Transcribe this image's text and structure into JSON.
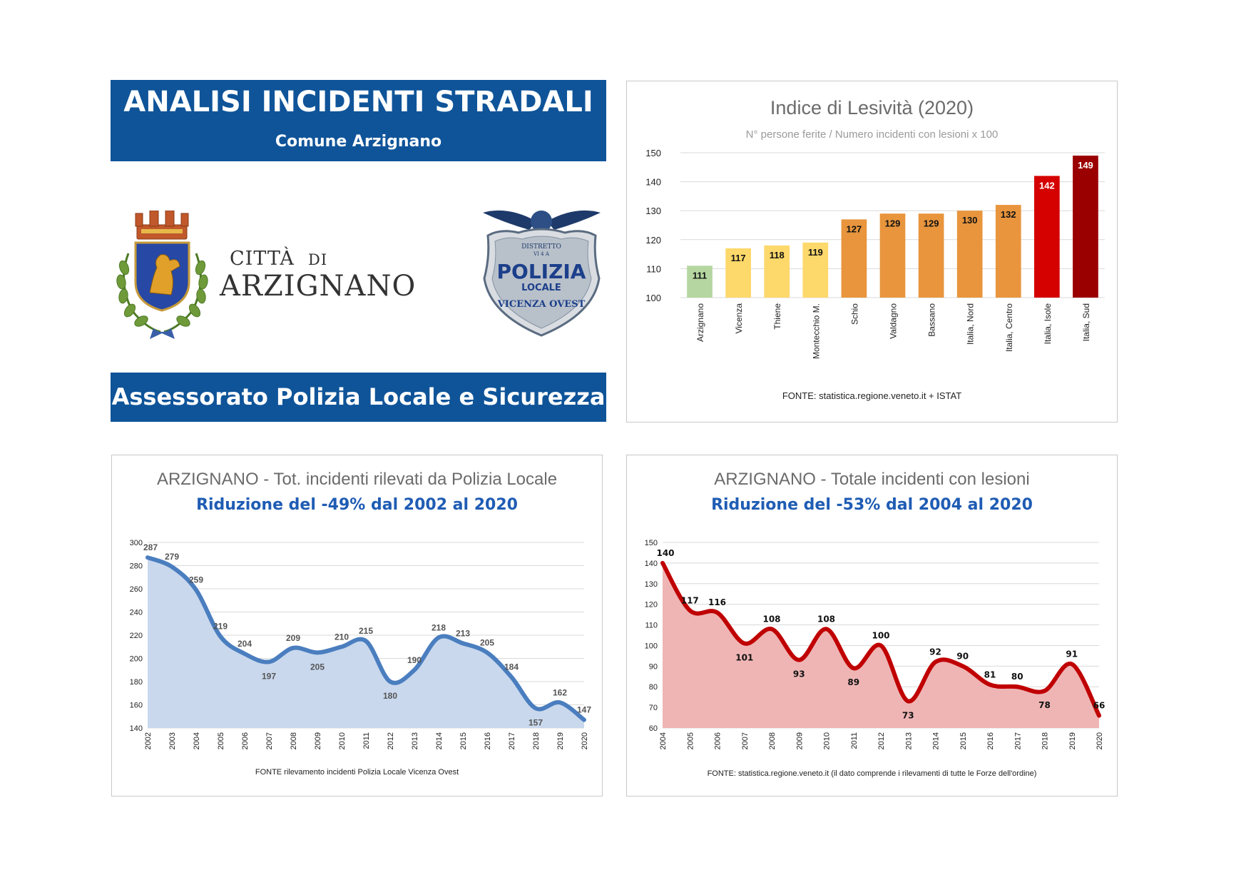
{
  "header": {
    "title": "ANALISI INCIDENTI STRADALI",
    "subtitle": "Comune Arzignano"
  },
  "city_logo": {
    "line1_main": "CITTÀ",
    "line1_small": "DI",
    "line2": "ARZIGNANO"
  },
  "police_badge": {
    "top_text": "DISTRETTO",
    "code": "VI 4 A",
    "main": "POLIZIA",
    "sub": "LOCALE",
    "bottom": "VICENZA OVEST"
  },
  "footer_banner": "Assessorato Polizia Locale e Sicurezza",
  "colors": {
    "brand_blue": "#0f5499",
    "subtitle_blue": "#1f5cb4",
    "line_blue": "#4a7ebf",
    "area_blue": "#c9d8ed",
    "line_red": "#c00000",
    "area_red": "#efb5b5"
  },
  "chart_data": [
    {
      "id": "lesivita",
      "type": "bar",
      "title": "Indice di Lesività (2020)",
      "subtitle": "N° persone ferite / Numero incidenti con lesioni x 100",
      "source": "FONTE: statistica.regione.veneto.it  +  ISTAT",
      "categories": [
        "Arzignano",
        "Vicenza",
        "Thiene",
        "Montecchio M.",
        "Schio",
        "Valdagno",
        "Bassano",
        "Italia, Nord",
        "Italia, Centro",
        "Italia, Isole",
        "Italia, Sud"
      ],
      "values": [
        111,
        117,
        118,
        119,
        127,
        129,
        129,
        130,
        132,
        142,
        149
      ],
      "bar_colors": [
        "#b5d6a0",
        "#fdd86a",
        "#fdd86a",
        "#fdd86a",
        "#e8953d",
        "#e8953d",
        "#e8953d",
        "#e8953d",
        "#e8953d",
        "#d50000",
        "#9b0000"
      ],
      "ylim": [
        100,
        150
      ],
      "yticks": [
        100,
        110,
        120,
        130,
        140,
        150
      ],
      "grid": true
    },
    {
      "id": "polizia_locale",
      "type": "area",
      "title": "ARZIGNANO - Tot. incidenti rilevati da Polizia Locale",
      "subtitle": "Riduzione del -49% dal 2002 al 2020",
      "source": "FONTE rilevamento incidenti Polizia Locale Vicenza Ovest",
      "x": [
        "2002",
        "2003",
        "2004",
        "2005",
        "2006",
        "2007",
        "2008",
        "2009",
        "2010",
        "2011",
        "2012",
        "2013",
        "2014",
        "2015",
        "2016",
        "2017",
        "2018",
        "2019",
        "2020"
      ],
      "values": [
        287,
        279,
        259,
        219,
        204,
        197,
        209,
        205,
        210,
        215,
        180,
        190,
        218,
        213,
        205,
        184,
        157,
        162,
        147
      ],
      "ylim": [
        140,
        300
      ],
      "yticks": [
        140,
        160,
        180,
        200,
        220,
        240,
        260,
        280,
        300
      ],
      "grid": true
    },
    {
      "id": "lesioni",
      "type": "area",
      "title": "ARZIGNANO - Totale incidenti con lesioni",
      "subtitle": "Riduzione del -53% dal 2004 al 2020",
      "source": "FONTE: statistica.regione.veneto.it  (il dato comprende i rilevamenti di tutte le Forze dell'ordine)",
      "x": [
        "2004",
        "2005",
        "2006",
        "2007",
        "2008",
        "2009",
        "2010",
        "2011",
        "2012",
        "2013",
        "2014",
        "2015",
        "2016",
        "2017",
        "2018",
        "2019",
        "2020"
      ],
      "values": [
        140,
        117,
        116,
        101,
        108,
        93,
        108,
        89,
        100,
        73,
        92,
        90,
        81,
        80,
        78,
        91,
        66
      ],
      "ylim": [
        60,
        150
      ],
      "yticks": [
        60,
        70,
        80,
        90,
        100,
        110,
        120,
        130,
        140,
        150
      ],
      "grid": true
    }
  ]
}
